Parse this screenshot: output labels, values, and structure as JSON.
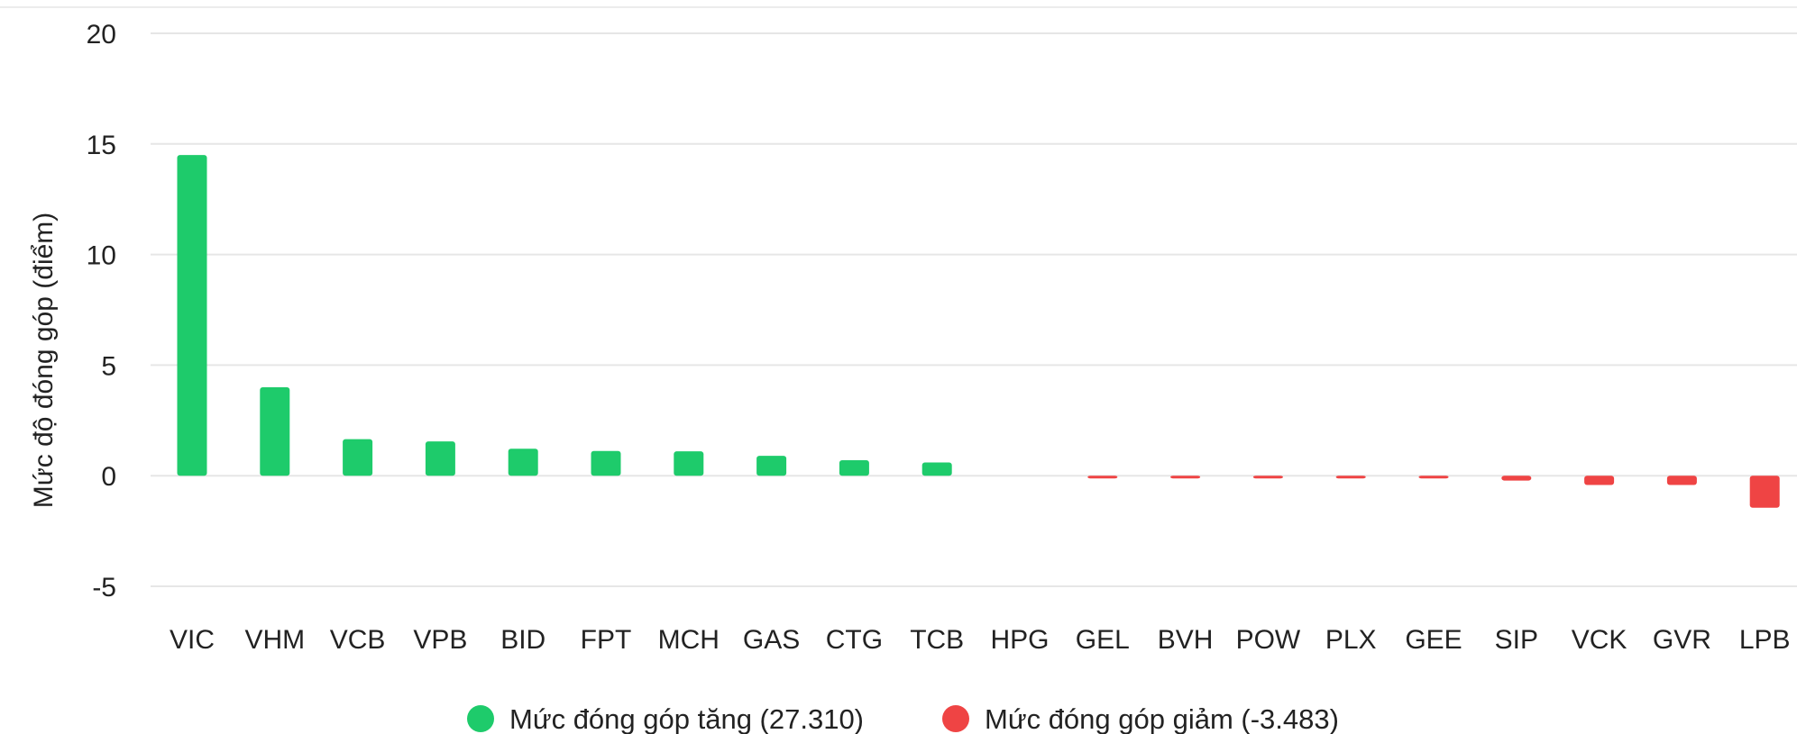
{
  "chart_data": {
    "type": "bar",
    "title": "",
    "xlabel": "",
    "ylabel": "Mức độ đóng góp (điểm)",
    "ylim": [
      -5,
      20
    ],
    "yticks": [
      -5,
      0,
      5,
      10,
      15,
      20
    ],
    "grid": true,
    "legend_position": "bottom-center",
    "categories": [
      "VIC",
      "VHM",
      "VCB",
      "VPB",
      "BID",
      "FPT",
      "MCH",
      "GAS",
      "CTG",
      "TCB",
      "HPG",
      "GEL",
      "BVH",
      "POW",
      "PLX",
      "GEE",
      "SIP",
      "VCK",
      "GVR",
      "LPB"
    ],
    "series": [
      {
        "name": "Mức đóng góp tăng (27.310)",
        "color": "#1ecb6b",
        "values": [
          14.5,
          4.0,
          1.65,
          1.55,
          1.22,
          1.12,
          1.1,
          0.9,
          0.7,
          0.6,
          0,
          0,
          0,
          0,
          0,
          0,
          0,
          0,
          0,
          0
        ]
      },
      {
        "name": "Mức đóng góp giảm (-3.483)",
        "color": "#ef4444",
        "values": [
          0,
          0,
          0,
          0,
          0,
          0,
          0,
          0,
          0,
          0,
          0,
          -0.12,
          -0.12,
          -0.12,
          -0.12,
          -0.12,
          -0.22,
          -0.42,
          -0.42,
          -1.45
        ]
      }
    ]
  }
}
